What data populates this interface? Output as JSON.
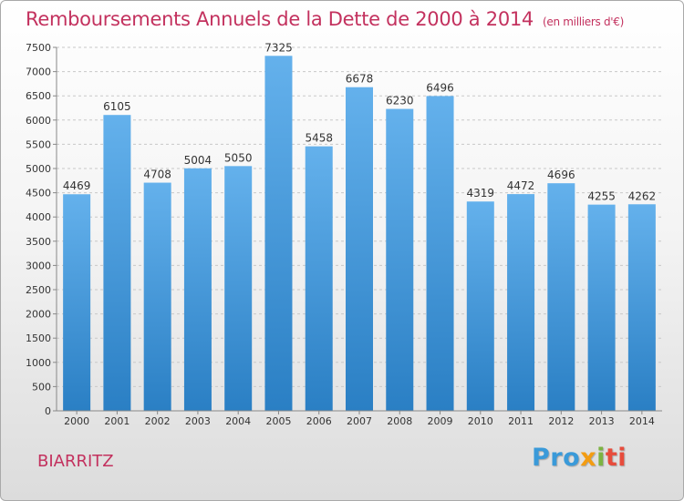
{
  "header": {
    "title": "Remboursements Annuels de la Dette de 2000 à 2014",
    "subtitle": "(en milliers d'€)"
  },
  "footer": {
    "city": "BIARRITZ",
    "logo": "Proxiti"
  },
  "colors": {
    "accent": "#c3315e",
    "bar_top": "#64b1ec",
    "bar_bottom": "#2a7fc4",
    "gridline": "#c8c8c8"
  },
  "chart_data": {
    "type": "bar",
    "title": "Remboursements Annuels de la Dette de 2000 à 2014",
    "xlabel": "",
    "ylabel": "",
    "ylim": [
      0,
      7500
    ],
    "yticks": [
      0,
      500,
      1000,
      1500,
      2000,
      2500,
      3000,
      3500,
      4000,
      4500,
      5000,
      5500,
      6000,
      6500,
      7000,
      7500
    ],
    "grid": true,
    "categories": [
      "2000",
      "2001",
      "2002",
      "2003",
      "2004",
      "2005",
      "2006",
      "2007",
      "2008",
      "2009",
      "2010",
      "2011",
      "2012",
      "2013",
      "2014"
    ],
    "values": [
      4469,
      6105,
      4708,
      5004,
      5050,
      7325,
      5458,
      6678,
      6230,
      6496,
      4319,
      4472,
      4696,
      4255,
      4262
    ]
  }
}
